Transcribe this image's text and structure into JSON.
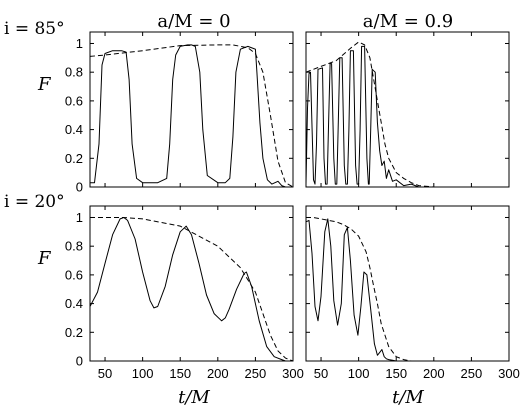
{
  "labels": {
    "col_left": "a/M = 0",
    "col_right": "a/M = 0.9",
    "row_top": "i = 85°",
    "row_bottom": "i = 20°",
    "ylabel": "F",
    "xlabel": "t/M"
  },
  "chart_data": [
    {
      "type": "line",
      "panel": "top-left",
      "spin": "a/M = 0",
      "inclination": "i = 85°",
      "xlim": [
        30,
        300
      ],
      "ylim": [
        0,
        1.08
      ],
      "xticks": [
        50,
        100,
        150,
        200,
        250,
        300
      ],
      "yticks": [
        0,
        0.2,
        0.4,
        0.6,
        0.8,
        1
      ],
      "series": [
        {
          "style": "solid",
          "x": [
            30,
            36,
            42,
            46,
            50,
            60,
            72,
            78,
            82,
            86,
            92,
            100,
            120,
            132,
            136,
            140,
            144,
            150,
            160,
            165,
            170,
            176,
            180,
            186,
            200,
            210,
            216,
            220,
            224,
            230,
            240,
            250,
            252,
            256,
            260,
            266,
            272,
            280,
            285,
            290
          ],
          "y": [
            0.03,
            0.03,
            0.3,
            0.85,
            0.93,
            0.95,
            0.95,
            0.94,
            0.75,
            0.3,
            0.06,
            0.03,
            0.03,
            0.06,
            0.3,
            0.75,
            0.92,
            0.98,
            0.99,
            0.99,
            0.98,
            0.8,
            0.4,
            0.08,
            0.03,
            0.03,
            0.06,
            0.35,
            0.8,
            0.96,
            0.98,
            0.96,
            0.8,
            0.45,
            0.2,
            0.05,
            0.02,
            0.04,
            0.01,
            0.0
          ]
        },
        {
          "style": "dashed",
          "x": [
            30,
            50,
            100,
            150,
            200,
            220,
            240,
            250,
            260,
            270,
            280,
            290,
            300
          ],
          "y": [
            0.91,
            0.92,
            0.95,
            0.985,
            0.99,
            0.99,
            0.97,
            0.93,
            0.8,
            0.5,
            0.18,
            0.03,
            0.0
          ]
        }
      ]
    },
    {
      "type": "line",
      "panel": "top-right",
      "spin": "a/M = 0.9",
      "inclination": "i = 85°",
      "xlim": [
        30,
        300
      ],
      "ylim": [
        0,
        1.08
      ],
      "xticks": [
        50,
        100,
        150,
        200,
        250,
        300
      ],
      "yticks": [
        0,
        0.2,
        0.4,
        0.6,
        0.8,
        1
      ],
      "series": [
        {
          "style": "solid",
          "x": [
            30,
            32,
            34,
            36,
            40,
            42,
            44,
            46,
            52,
            54,
            56,
            58,
            60,
            62,
            64,
            67,
            69,
            71,
            73,
            75,
            78,
            81,
            83,
            85,
            87,
            89,
            93,
            96,
            98,
            100,
            102,
            104,
            108,
            111,
            113,
            114,
            116,
            118,
            122,
            125,
            128,
            131,
            134,
            137,
            140,
            145,
            150,
            160,
            170,
            180,
            190,
            200
          ],
          "y": [
            0.02,
            0.55,
            0.79,
            0.8,
            0.05,
            0.02,
            0.3,
            0.82,
            0.83,
            0.2,
            0.02,
            0.02,
            0.45,
            0.86,
            0.86,
            0.2,
            0.02,
            0.02,
            0.45,
            0.9,
            0.9,
            0.15,
            0.02,
            0.02,
            0.4,
            0.95,
            0.95,
            0.15,
            0.02,
            0.02,
            0.4,
            0.98,
            0.98,
            0.2,
            0.02,
            0.02,
            0.4,
            0.82,
            0.8,
            0.45,
            0.25,
            0.15,
            0.18,
            0.06,
            0.12,
            0.04,
            0.05,
            0.01,
            0.02,
            0.0,
            0.0,
            0.0
          ]
        },
        {
          "style": "dashed",
          "x": [
            30,
            50,
            70,
            90,
            100,
            108,
            115,
            120,
            125,
            130,
            135,
            140,
            150,
            160,
            170,
            180,
            200
          ],
          "y": [
            0.8,
            0.84,
            0.88,
            0.97,
            1.01,
            0.99,
            0.9,
            0.75,
            0.6,
            0.45,
            0.3,
            0.2,
            0.1,
            0.06,
            0.03,
            0.01,
            0.0
          ]
        }
      ]
    },
    {
      "type": "line",
      "panel": "bottom-left",
      "spin": "a/M = 0",
      "inclination": "i = 20°",
      "xlim": [
        30,
        300
      ],
      "ylim": [
        0,
        1.08
      ],
      "xticks": [
        50,
        100,
        150,
        200,
        250,
        300
      ],
      "yticks": [
        0,
        0.2,
        0.4,
        0.6,
        0.8,
        1
      ],
      "series": [
        {
          "style": "solid",
          "x": [
            30,
            40,
            50,
            60,
            70,
            75,
            80,
            90,
            100,
            110,
            115,
            120,
            130,
            140,
            150,
            158,
            165,
            175,
            185,
            195,
            205,
            210,
            215,
            225,
            235,
            238,
            245,
            255,
            265,
            275,
            285,
            290
          ],
          "y": [
            0.38,
            0.48,
            0.68,
            0.88,
            0.99,
            1.0,
            0.98,
            0.85,
            0.62,
            0.42,
            0.37,
            0.38,
            0.52,
            0.74,
            0.9,
            0.94,
            0.88,
            0.68,
            0.46,
            0.33,
            0.28,
            0.3,
            0.36,
            0.5,
            0.61,
            0.62,
            0.52,
            0.28,
            0.1,
            0.03,
            0.01,
            0.0
          ]
        },
        {
          "style": "dashed",
          "x": [
            30,
            75,
            100,
            150,
            200,
            230,
            250,
            260,
            270,
            280,
            290,
            300
          ],
          "y": [
            1.0,
            1.0,
            0.99,
            0.94,
            0.8,
            0.65,
            0.48,
            0.33,
            0.18,
            0.07,
            0.02,
            0.0
          ]
        }
      ]
    },
    {
      "type": "line",
      "panel": "bottom-right",
      "spin": "a/M = 0.9",
      "inclination": "i = 20°",
      "xlim": [
        30,
        300
      ],
      "ylim": [
        0,
        1.08
      ],
      "xticks": [
        50,
        100,
        150,
        200,
        250,
        300
      ],
      "yticks": [
        0,
        0.2,
        0.4,
        0.6,
        0.8,
        1
      ],
      "series": [
        {
          "style": "solid",
          "x": [
            30,
            34,
            38,
            42,
            46,
            50,
            55,
            59,
            63,
            67,
            72,
            77,
            81,
            85,
            89,
            94,
            99,
            103,
            107,
            111,
            116,
            121,
            125,
            128,
            131,
            134,
            137,
            140,
            145,
            150,
            160
          ],
          "y": [
            0.97,
            0.98,
            0.75,
            0.38,
            0.28,
            0.45,
            0.9,
            0.99,
            0.8,
            0.42,
            0.25,
            0.4,
            0.88,
            0.93,
            0.7,
            0.32,
            0.18,
            0.38,
            0.62,
            0.6,
            0.36,
            0.12,
            0.04,
            0.06,
            0.08,
            0.03,
            0.015,
            0.01,
            0.005,
            0.0,
            0.0
          ]
        },
        {
          "style": "dashed",
          "x": [
            30,
            40,
            50,
            60,
            70,
            80,
            90,
            100,
            110,
            115,
            120,
            125,
            130,
            140,
            150,
            160,
            170
          ],
          "y": [
            1.0,
            1.0,
            0.99,
            0.98,
            0.97,
            0.95,
            0.92,
            0.87,
            0.76,
            0.65,
            0.52,
            0.4,
            0.26,
            0.1,
            0.03,
            0.01,
            0.0
          ]
        }
      ]
    }
  ]
}
